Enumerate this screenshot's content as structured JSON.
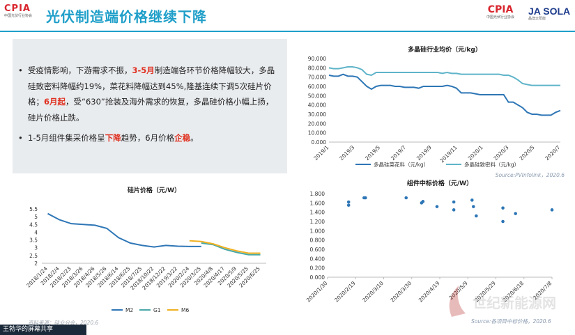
{
  "header": {
    "title": "光伏制造端价格继续下降",
    "cpia_logo_text": "CPIA",
    "cpia_sub": "中国光伏行业协会",
    "ja_logo_text": "JA SOLA",
    "ja_sub": "晶澳太阳能"
  },
  "summary": {
    "b1_pre": "受疫情影响，下游需求不振，",
    "b1_red1": "3-5月",
    "b1_mid": "制造端各环节价格降幅较大，多晶硅致密料降幅约19%，菜花料降幅达到45%,隆基连续下调5次硅片价格；",
    "b1_red2": "6月起",
    "b1_post": "，受“630”抢装及海外需求的恢复，多晶硅价格小幅上扬，硅片价格止跌。",
    "b2_pre": "1-5月组件集采价格呈",
    "b2_red1": "下降",
    "b2_mid": "趋势，6月价格",
    "b2_red2": "企稳",
    "b2_post": "。"
  },
  "colors": {
    "brand_blue": "#1f9fc9",
    "red": "#e03020"
  },
  "chart_data": [
    {
      "type": "line",
      "title": "多晶硅行业均价（元/kg）",
      "x_ticks": [
        "2019/1",
        "2019/3",
        "2019/5",
        "2019/7",
        "2019/9",
        "2019/11",
        "2020/1",
        "2020/3",
        "2020/5",
        "2020/7"
      ],
      "y_ticks": [
        "0.000",
        "10.000",
        "20.000",
        "30.000",
        "40.000",
        "50.000",
        "60.000",
        "70.000",
        "80.000",
        "90.000"
      ],
      "ylim": [
        0,
        90
      ],
      "series": [
        {
          "name": "多晶硅菜花料（元/kg）",
          "color": "#2e76b6",
          "values": [
            72,
            71,
            71,
            73,
            71,
            71,
            70,
            65,
            60,
            57,
            60,
            61,
            61,
            61,
            60,
            60,
            59,
            59,
            59,
            58,
            60,
            60,
            60,
            60,
            60,
            61,
            60,
            58,
            53,
            53,
            53,
            52,
            51,
            51,
            51,
            51,
            51,
            51,
            43,
            43,
            40,
            37,
            32,
            30,
            30,
            29,
            29,
            29,
            32,
            34
          ]
        },
        {
          "name": "多晶硅致密料（元/kg）",
          "color": "#5fb4c9",
          "values": [
            80,
            79,
            79,
            80,
            81,
            81,
            80,
            78,
            73,
            72,
            75,
            75,
            75,
            75,
            75,
            75,
            75,
            75,
            75,
            75,
            75,
            75,
            75,
            75,
            74,
            75,
            74,
            74,
            73,
            73,
            73,
            73,
            73,
            73,
            73,
            73,
            73,
            72,
            72,
            70,
            67,
            63,
            62,
            61,
            61,
            61,
            61,
            61,
            61,
            61
          ]
        }
      ],
      "source": "Source:PVInfolink，2020.6"
    },
    {
      "type": "line",
      "title": "硅片价格（元/W）",
      "x_ticks": [
        "2018/1/24",
        "2018/2/4",
        "2018/2/23",
        "2018/3/26",
        "2018/4/26",
        "2018/5/26",
        "2018/6/14",
        "2018/6/25",
        "2018/7/25",
        "2018/10/22",
        "2018/12/22",
        "2019/3/22",
        "2020/2/24",
        "2020/3/25",
        "2020/4/8",
        "2020/4/17",
        "2020/5/9",
        "2020/5/25",
        "2020/6/25"
      ],
      "y_ticks": [
        "2",
        "2.5",
        "3",
        "3.5",
        "4",
        "4.5",
        "5",
        "5.5"
      ],
      "ylim": [
        2,
        5.5
      ],
      "series": [
        {
          "name": "M2",
          "color": "#2e76b6",
          "values": [
            5.2,
            4.8,
            4.55,
            4.5,
            4.45,
            4.25,
            3.65,
            3.3,
            3.15,
            3.05,
            3.15,
            3.1,
            3.08,
            3.08,
            null,
            null,
            null,
            null,
            null
          ]
        },
        {
          "name": "G1",
          "color": "#4aa8a8",
          "values": [
            null,
            null,
            null,
            null,
            null,
            null,
            null,
            null,
            null,
            null,
            null,
            null,
            null,
            3.3,
            3.2,
            2.9,
            2.7,
            2.55,
            2.55
          ]
        },
        {
          "name": "M6",
          "color": "#f0b020",
          "values": [
            null,
            null,
            null,
            null,
            null,
            null,
            null,
            null,
            null,
            null,
            null,
            null,
            3.45,
            3.4,
            3.25,
            3.0,
            2.8,
            2.65,
            2.65
          ]
        }
      ],
      "source": "资料来源：硅业分会，2020.6"
    },
    {
      "type": "scatter",
      "title": "组件中标价格（元/W）",
      "x_ticks": [
        "2020/1/30",
        "2020/2/19",
        "2020/3/10",
        "2020/3/30",
        "2020/4/19",
        "2020/5/9",
        "2020/5/29",
        "2020/6/18",
        "2020/7/8"
      ],
      "y_ticks": [
        "0.000",
        "0.200",
        "0.400",
        "0.600",
        "0.800",
        "1.000",
        "1.200",
        "1.400",
        "1.600",
        "1.800"
      ],
      "ylim": [
        0,
        1.8
      ],
      "points": [
        [
          15,
          1.62
        ],
        [
          15,
          1.55
        ],
        [
          26,
          1.71
        ],
        [
          27,
          1.71
        ],
        [
          56,
          1.71
        ],
        [
          67,
          1.6
        ],
        [
          68,
          1.63
        ],
        [
          78,
          1.52
        ],
        [
          90,
          1.62
        ],
        [
          90,
          1.45
        ],
        [
          103,
          1.66
        ],
        [
          104,
          1.52
        ],
        [
          106,
          1.32
        ],
        [
          125,
          1.49
        ],
        [
          125,
          1.2
        ],
        [
          134,
          1.37
        ],
        [
          160,
          1.45
        ]
      ],
      "series_color": "#2e76b6",
      "source": "Source:各项目中标价格，2020.6"
    }
  ],
  "taskbar": {
    "share_text": "王勃华的屏幕共享"
  }
}
